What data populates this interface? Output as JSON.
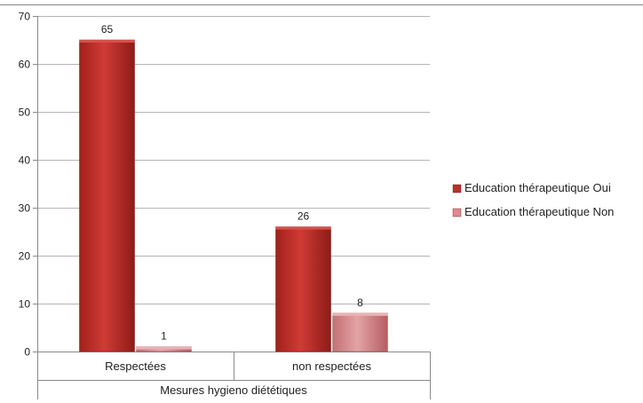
{
  "chart_data": {
    "type": "bar",
    "title": "",
    "xlabel": "Mesures hygieno diététiques",
    "ylabel": "",
    "categories": [
      "Respectées",
      "non respectées"
    ],
    "series": [
      {
        "name": "Education thérapeutique Oui",
        "values": [
          65,
          26
        ],
        "color": "#c0392f"
      },
      {
        "name": "Education thérapeutique Non",
        "values": [
          1,
          8
        ],
        "color": "#d9878a"
      }
    ],
    "ylim": [
      0,
      70
    ],
    "yticks": [
      0,
      10,
      20,
      30,
      40,
      50,
      60,
      70
    ],
    "grid": true,
    "legend_position": "right",
    "data_labels": true
  }
}
